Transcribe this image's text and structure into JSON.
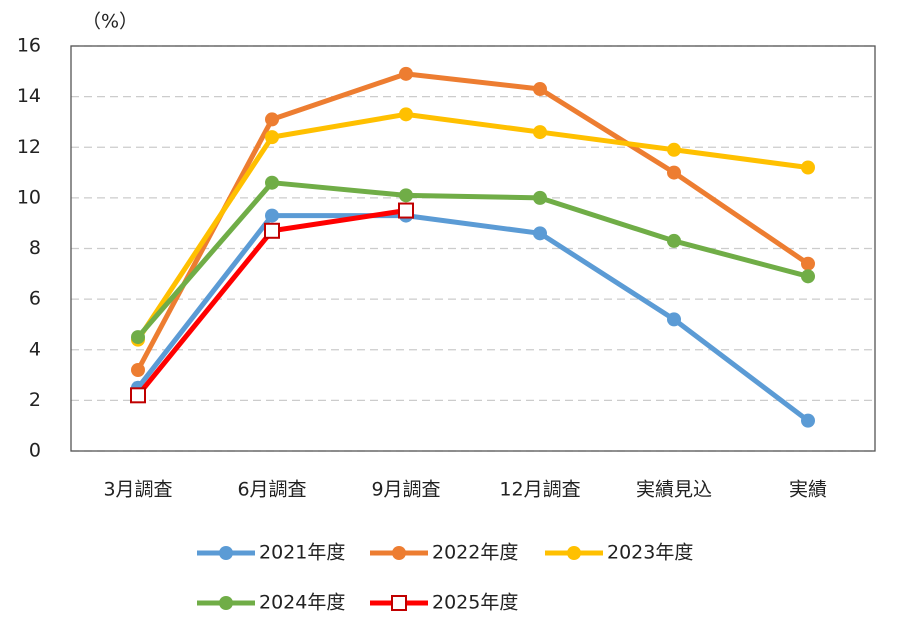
{
  "chart_data": {
    "type": "line",
    "y_label": "（%）",
    "categories": [
      "3月調査",
      "6月調査",
      "9月調査",
      "12月調査",
      "実績見込",
      "実績"
    ],
    "series": [
      {
        "name": "2021年度",
        "color": "#5b9bd5",
        "marker": "circle",
        "values": [
          2.5,
          9.3,
          9.3,
          8.6,
          5.2,
          1.2
        ]
      },
      {
        "name": "2022年度",
        "color": "#ed7d31",
        "marker": "circle",
        "values": [
          3.2,
          13.1,
          14.9,
          14.3,
          11.0,
          7.4
        ]
      },
      {
        "name": "2023年度",
        "color": "#ffc000",
        "marker": "circle",
        "values": [
          4.4,
          12.4,
          13.3,
          12.6,
          11.9,
          11.2
        ]
      },
      {
        "name": "2024年度",
        "color": "#70ad47",
        "marker": "circle",
        "values": [
          4.5,
          10.6,
          10.1,
          10.0,
          8.3,
          6.9
        ]
      },
      {
        "name": "2025年度",
        "color": "#ff0000",
        "marker": "square",
        "values": [
          2.2,
          8.7,
          9.5,
          null,
          null,
          null
        ]
      }
    ],
    "ylim": [
      0,
      16
    ],
    "yticks": [
      0,
      2,
      4,
      6,
      8,
      10,
      12,
      14,
      16
    ],
    "grid": true
  }
}
